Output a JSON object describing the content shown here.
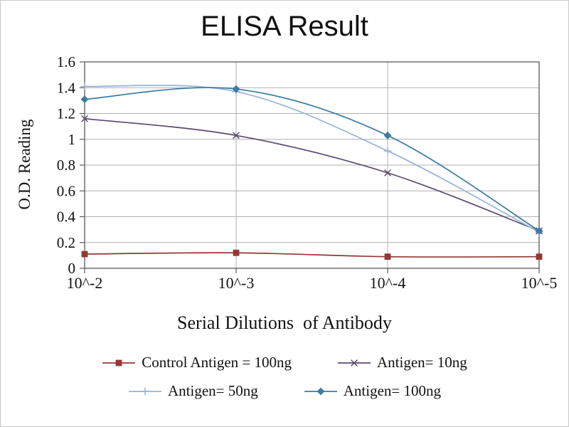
{
  "chart_data": {
    "type": "line",
    "title": "ELISA Result",
    "xlabel": "Serial Dilutions  of Antibody",
    "ylabel": "O.D. Reading",
    "categories": [
      "10^-2",
      "10^-3",
      "10^-4",
      "10^-5"
    ],
    "ylim": [
      0,
      1.6
    ],
    "ytick_step": 0.2,
    "grid": true,
    "legend_position": "bottom",
    "colors": {
      "grid": "#b0b0b0",
      "axis": "#595959",
      "text": "#111111"
    },
    "series": [
      {
        "name": "Control Antigen = 100ng",
        "marker": "square",
        "color": "#953735",
        "values": [
          0.11,
          0.12,
          0.09,
          0.09
        ]
      },
      {
        "name": "Antigen= 10ng",
        "marker": "x",
        "color": "#5B4A6F",
        "values": [
          1.16,
          1.03,
          0.74,
          0.29
        ]
      },
      {
        "name": "Antigen= 50ng",
        "marker": "plus",
        "color": "#95B3D7",
        "values": [
          1.41,
          1.37,
          0.91,
          0.28
        ]
      },
      {
        "name": "Antigen= 100ng",
        "marker": "diamond",
        "color": "#3A7CA5",
        "values": [
          1.31,
          1.39,
          1.03,
          0.29
        ]
      }
    ]
  }
}
